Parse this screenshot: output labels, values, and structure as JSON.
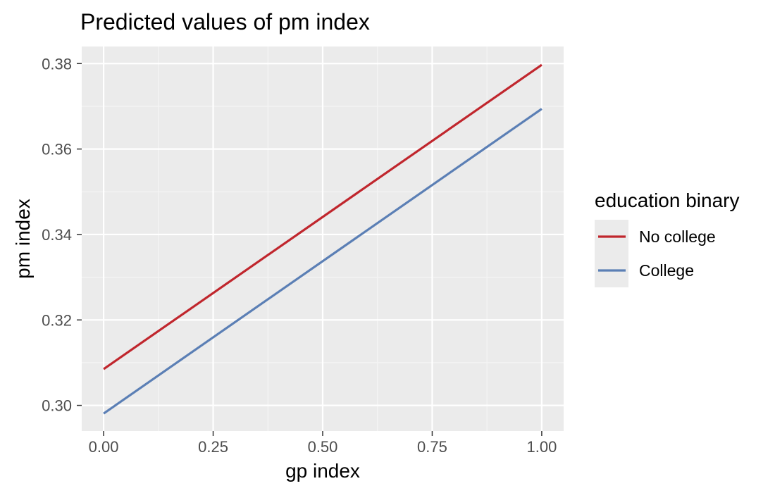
{
  "chart_data": {
    "type": "line",
    "title": "Predicted values of pm index",
    "xlabel": "gp index",
    "ylabel": "pm index",
    "xlim": [
      -0.05,
      1.05
    ],
    "ylim": [
      0.294,
      0.384
    ],
    "x_ticks": [
      0.0,
      0.25,
      0.5,
      0.75,
      1.0
    ],
    "x_tick_labels": [
      "0.00",
      "0.25",
      "0.50",
      "0.75",
      "1.00"
    ],
    "y_ticks": [
      0.3,
      0.32,
      0.34,
      0.36,
      0.38
    ],
    "y_tick_labels": [
      "0.30",
      "0.32",
      "0.34",
      "0.36",
      "0.38"
    ],
    "grid": true,
    "legend": {
      "title": "education binary",
      "placement": "right"
    },
    "series": [
      {
        "name": "No college",
        "color": "#c0262d",
        "x": [
          0.0,
          1.0
        ],
        "y": [
          0.3085,
          0.3797
        ]
      },
      {
        "name": "College",
        "color": "#5b7fb5",
        "x": [
          0.0,
          1.0
        ],
        "y": [
          0.2981,
          0.3694
        ]
      }
    ]
  },
  "colors": {
    "panel_background": "#ebebeb",
    "grid_major": "#ffffff",
    "grid_minor": "#f5f5f5",
    "tick_text": "#4d4d4d"
  }
}
